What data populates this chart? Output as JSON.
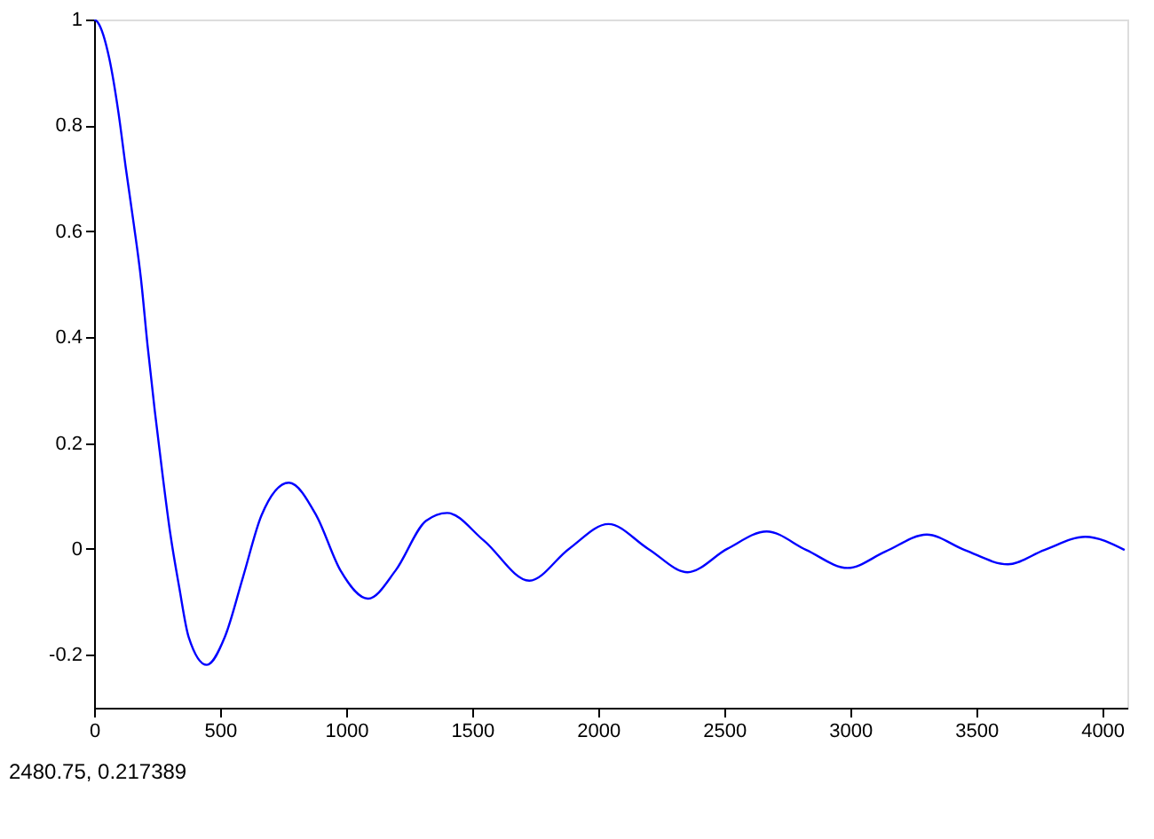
{
  "chart_data": {
    "type": "line",
    "x": [
      0,
      14,
      60,
      97,
      126,
      157,
      186,
      212,
      241,
      273,
      302,
      338,
      375,
      447,
      519,
      591,
      664,
      773,
      882,
      978,
      1087,
      1196,
      1317,
      1401,
      1546,
      1727,
      1884,
      2041,
      2199,
      2355,
      2512,
      2669,
      2826,
      2990,
      3140,
      3304,
      3454,
      3626,
      3771,
      3933,
      4089
    ],
    "series": [
      {
        "color": "#0000ff",
        "values": [
          1,
          0.995,
          0.927,
          0.823,
          0.719,
          0.615,
          0.51,
          0.385,
          0.26,
          0.135,
          0.03,
          -0.073,
          -0.166,
          -0.219,
          -0.166,
          -0.053,
          0.063,
          0.125,
          0.063,
          -0.041,
          -0.094,
          -0.041,
          0.053,
          0.068,
          0.016,
          -0.06,
          0,
          0.047,
          0,
          -0.044,
          0,
          0.033,
          -0.002,
          -0.036,
          -0.005,
          0.027,
          -0.002,
          -0.029,
          -0.002,
          0.023,
          -0.002
        ]
      }
    ],
    "xlim": [
      0,
      4100
    ],
    "xticks": [
      0,
      500,
      1000,
      1500,
      2000,
      2500,
      3000,
      3500,
      4000
    ],
    "ylim": [
      -0.3,
      1
    ],
    "yticks": [
      -0.2,
      0,
      0.2,
      0.4,
      0.6,
      0.8,
      1
    ],
    "grid": false,
    "marker": "none",
    "line_style": "solid",
    "annotations": [
      "2480.75,  0.217389"
    ]
  }
}
